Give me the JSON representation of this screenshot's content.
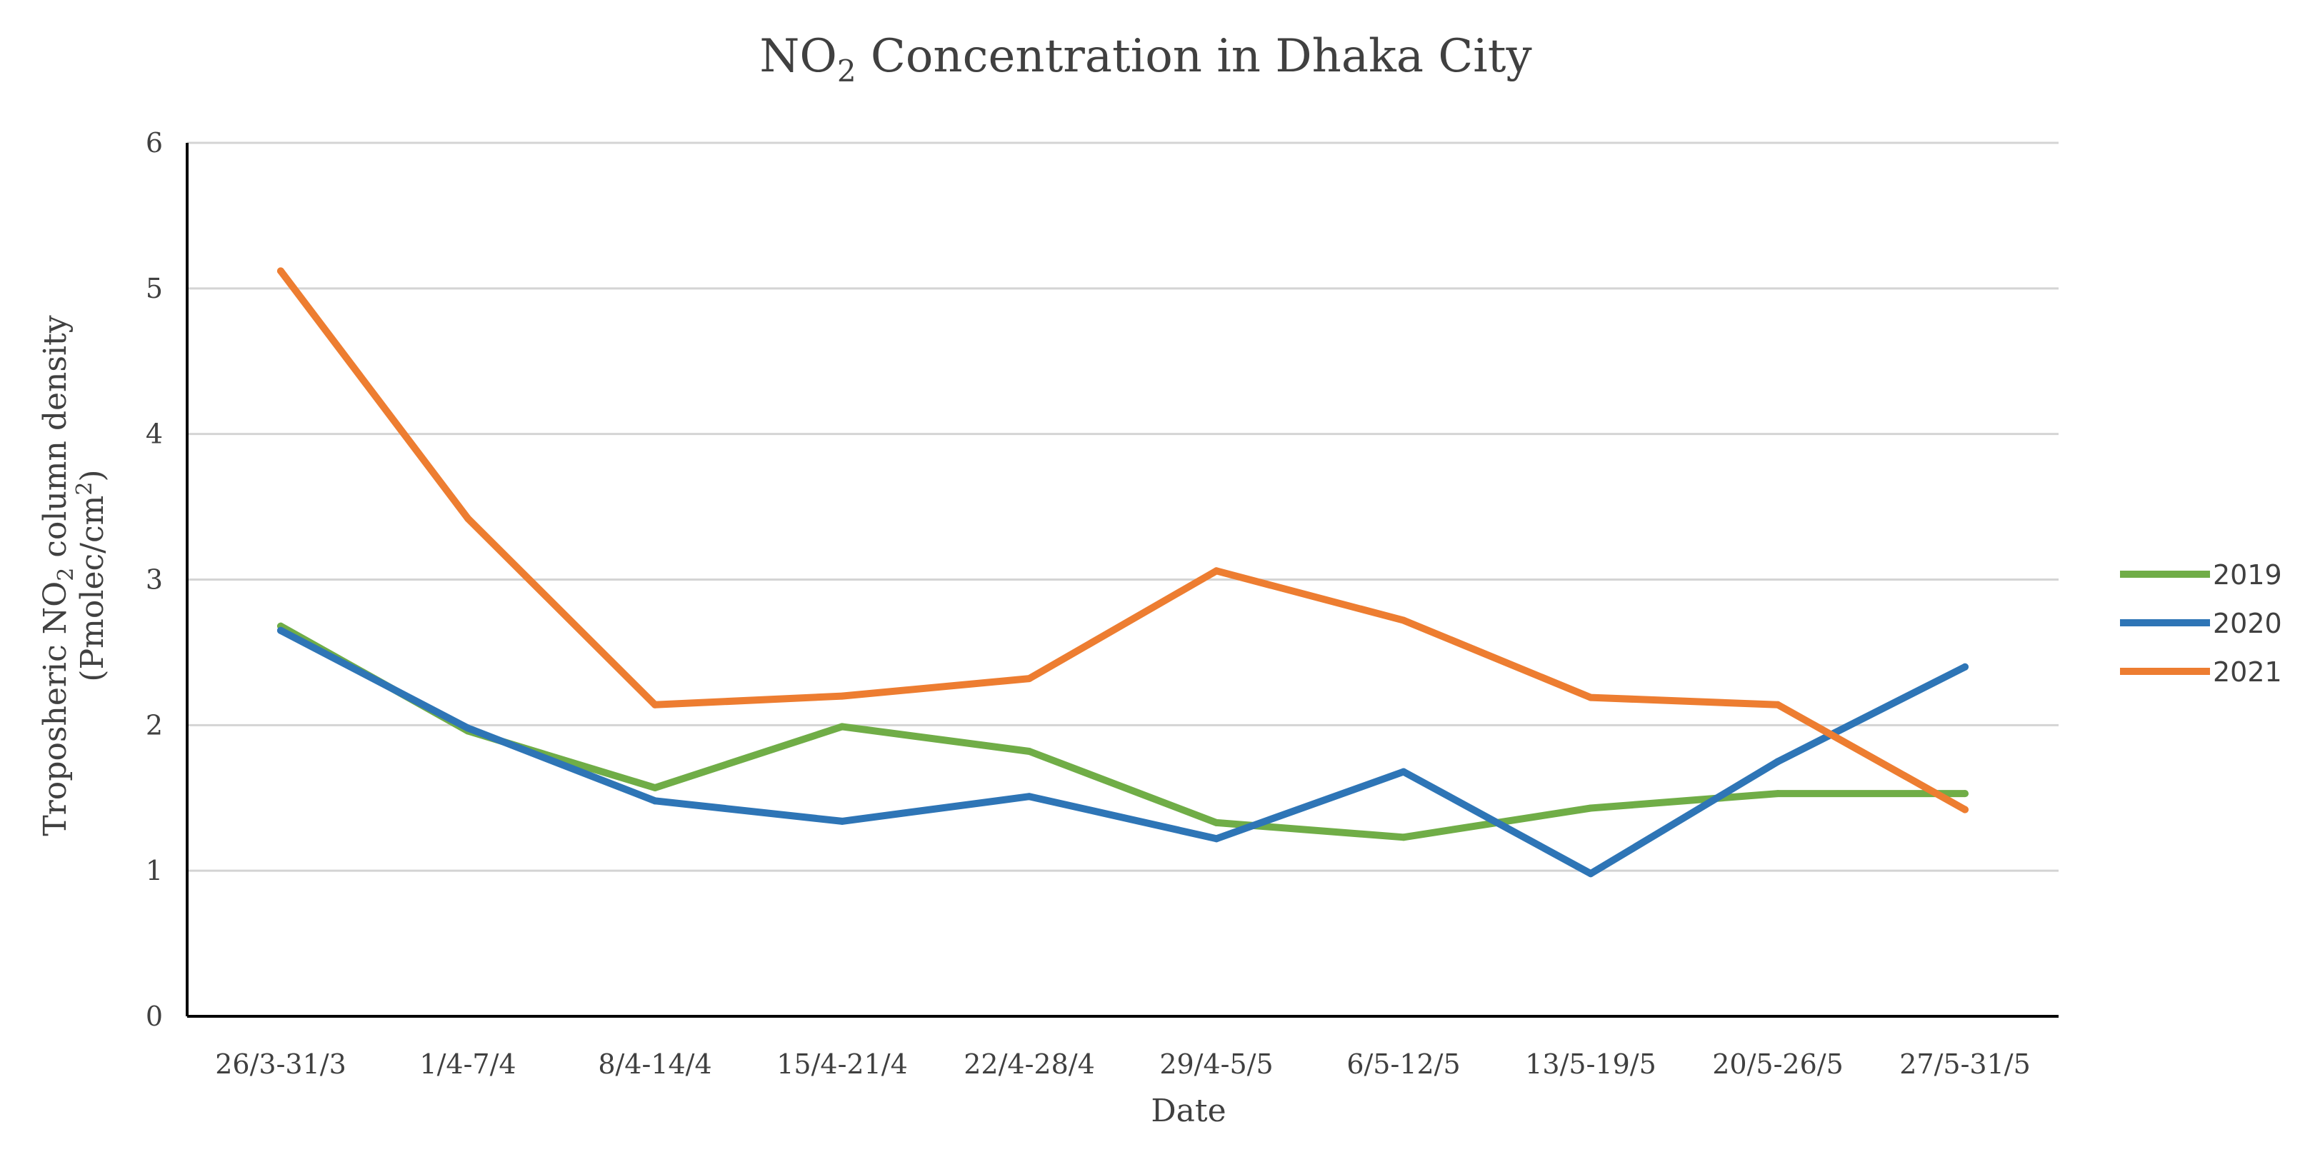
{
  "chart_data": {
    "type": "line",
    "title_prefix": "NO",
    "title_sub": "2",
    "title_suffix": " Concentration in Dhaka City",
    "title": "NO2 Concentration in Dhaka City",
    "xlabel": "Date",
    "ylabel_line1_prefix": "Troposheric NO",
    "ylabel_line1_sub": "2",
    "ylabel_line1_suffix": " column density",
    "ylabel_line2_prefix": "(Pmolec/cm",
    "ylabel_line2_sup": "2",
    "ylabel_line2_suffix": ")",
    "ylabel": "Troposheric NO2 column density (Pmolec/cm2)",
    "ylim": [
      0,
      6
    ],
    "yticks": [
      "0",
      "1",
      "2",
      "3",
      "4",
      "5",
      "6"
    ],
    "grid": true,
    "legend_position": "right",
    "categories": [
      "26/3-31/3",
      "1/4-7/4",
      "8/4-14/4",
      "15/4-21/4",
      "22/4-28/4",
      "29/4-5/5",
      "6/5-12/5",
      "13/5-19/5",
      "20/5-26/5",
      "27/5-31/5"
    ],
    "series": [
      {
        "name": "2019",
        "color": "#70ad47",
        "values": [
          2.68,
          1.96,
          1.57,
          1.99,
          1.82,
          1.33,
          1.23,
          1.43,
          1.53,
          1.53
        ]
      },
      {
        "name": "2020",
        "color": "#2e75b6",
        "values": [
          2.65,
          1.98,
          1.48,
          1.34,
          1.51,
          1.22,
          1.68,
          0.98,
          1.75,
          2.4
        ]
      },
      {
        "name": "2021",
        "color": "#ed7d31",
        "values": [
          5.12,
          3.42,
          2.14,
          2.2,
          2.32,
          3.06,
          2.72,
          2.19,
          2.14,
          1.42
        ]
      }
    ]
  }
}
